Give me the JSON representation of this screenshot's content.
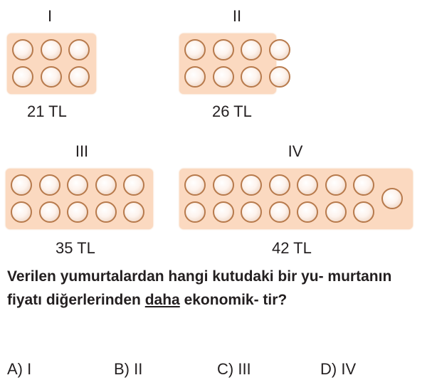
{
  "cartons": [
    {
      "label": "I",
      "price": "21 TL",
      "eggs": 6
    },
    {
      "label": "II",
      "price": "26 TL",
      "eggs": 8
    },
    {
      "label": "III",
      "price": "35 TL",
      "eggs": 10
    },
    {
      "label": "IV",
      "price": "42 TL",
      "eggs": 15
    }
  ],
  "question": {
    "before": "Verilen yumurtalardan hangi kutudaki bir yu- murtanın fiyatı diğerlerinden ",
    "underlined": "daha",
    "after": " ekonomik- tir?"
  },
  "options": [
    "A) I",
    "B) II",
    "C) III",
    "D) IV"
  ],
  "colors": {
    "carton": "#fbd9c0",
    "egg_outline": "#b77a4c"
  }
}
